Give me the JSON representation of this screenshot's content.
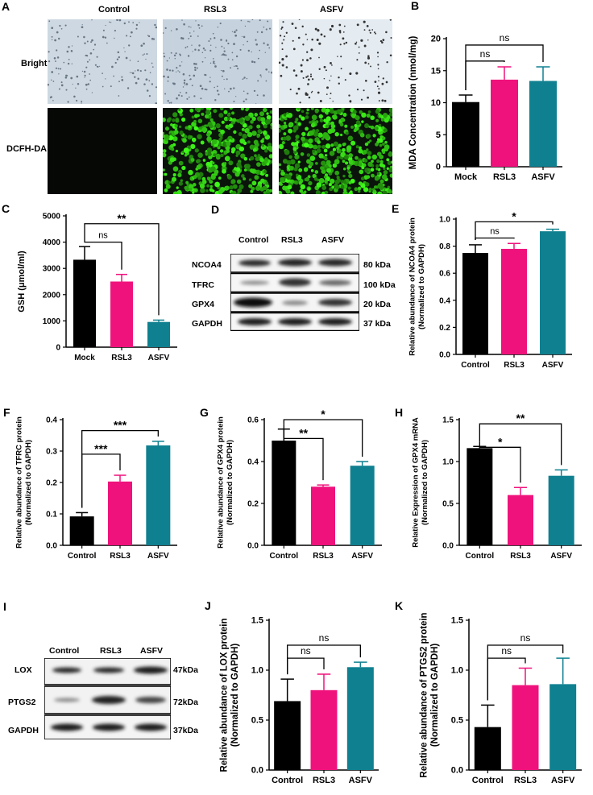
{
  "colors": {
    "black": "#000000",
    "pink": "#f0127c",
    "teal": "#0f8090"
  },
  "panelA": {
    "letter": "A",
    "columns": [
      "Control",
      "RSL3",
      "ASFV"
    ],
    "rows": [
      "Bright",
      "DCFH-DA"
    ]
  },
  "panelD": {
    "letter": "D",
    "columns": [
      "Control",
      "RSL3",
      "ASFV"
    ],
    "bands": [
      {
        "name": "NCOA4",
        "kda": "80 kDa"
      },
      {
        "name": "TFRC",
        "kda": "100 kDa"
      },
      {
        "name": "GPX4",
        "kda": "20 kDa"
      },
      {
        "name": "GAPDH",
        "kda": "37 kDa"
      }
    ]
  },
  "panelI": {
    "letter": "I",
    "columns": [
      "Control",
      "RSL3",
      "ASFV"
    ],
    "bands": [
      {
        "name": "LOX",
        "kda": "47kDa"
      },
      {
        "name": "PTGS2",
        "kda": "72kDa"
      },
      {
        "name": "GAPDH",
        "kda": "37kDa"
      }
    ]
  },
  "chart_data": [
    {
      "id": "B",
      "type": "bar",
      "categories": [
        "Mock",
        "RSL3",
        "ASFV"
      ],
      "values": [
        10.1,
        13.6,
        13.4
      ],
      "errors": [
        1.1,
        2.0,
        2.2
      ],
      "ylabel": "MDA Concentration (nmol/mg)",
      "ylim": [
        0,
        20
      ],
      "yticks": [
        "0",
        "5",
        "10",
        "15",
        "20"
      ],
      "brackets": [
        {
          "from": 0,
          "to": 1,
          "label": "ns",
          "y": 16.5
        },
        {
          "from": 0,
          "to": 2,
          "label": "ns",
          "y": 19.0
        }
      ]
    },
    {
      "id": "C",
      "type": "bar",
      "categories": [
        "Mock",
        "RSL3",
        "ASFV"
      ],
      "values": [
        3330,
        2500,
        960
      ],
      "errors": [
        500,
        270,
        70
      ],
      "ylabel": "GSH (μmol/ml)",
      "ylim": [
        0,
        5000
      ],
      "yticks": [
        "0",
        "1000",
        "2000",
        "3000",
        "4000",
        "5000"
      ],
      "brackets": [
        {
          "from": 0,
          "to": 1,
          "label": "ns",
          "y": 4000
        },
        {
          "from": 0,
          "to": 2,
          "label": "**",
          "y": 4700
        }
      ]
    },
    {
      "id": "E",
      "type": "bar",
      "categories": [
        "Control",
        "RSL3",
        "ASFV"
      ],
      "values": [
        0.75,
        0.78,
        0.91
      ],
      "errors": [
        0.06,
        0.04,
        0.015
      ],
      "ylabel": "Relative abundance of NCOA4 protein\n(Normalized to GAPDH)",
      "ylim": [
        0,
        1.0
      ],
      "yticks": [
        "0.0",
        "0.2",
        "0.4",
        "0.6",
        "0.8",
        "1.0"
      ],
      "brackets": [
        {
          "from": 0,
          "to": 1,
          "label": "ns",
          "y": 0.86
        },
        {
          "from": 0,
          "to": 2,
          "label": "*",
          "y": 0.98
        }
      ]
    },
    {
      "id": "F",
      "type": "bar",
      "categories": [
        "Control",
        "RSL3",
        "ASFV"
      ],
      "values": [
        0.092,
        0.203,
        0.318
      ],
      "errors": [
        0.012,
        0.02,
        0.013
      ],
      "ylabel": "Relative abundance of TFRC protein\n(Normalized to GAPDH)",
      "ylim": [
        0,
        0.4
      ],
      "yticks": [
        "0.0",
        "0.1",
        "0.2",
        "0.3",
        "0.4"
      ],
      "brackets": [
        {
          "from": 0,
          "to": 1,
          "label": "***",
          "y": 0.29
        },
        {
          "from": 0,
          "to": 2,
          "label": "***",
          "y": 0.365
        }
      ]
    },
    {
      "id": "G",
      "type": "bar",
      "categories": [
        "Control",
        "RSL3",
        "ASFV"
      ],
      "values": [
        0.5,
        0.28,
        0.38
      ],
      "errors": [
        0.055,
        0.008,
        0.02
      ],
      "ylabel": "Relative abundance of GPX4 protein\n(Normalized to GAPDH)",
      "ylim": [
        0,
        0.6
      ],
      "yticks": [
        "0.0",
        "0.2",
        "0.4",
        "0.6"
      ],
      "brackets": [
        {
          "from": 0,
          "to": 1,
          "label": "**",
          "y": 0.51
        },
        {
          "from": 0,
          "to": 2,
          "label": "*",
          "y": 0.6
        }
      ]
    },
    {
      "id": "H",
      "type": "bar",
      "categories": [
        "Control",
        "RSL3",
        "ASFV"
      ],
      "values": [
        1.16,
        0.6,
        0.83
      ],
      "errors": [
        0.02,
        0.09,
        0.07
      ],
      "ylabel": "Relative Expression of GPX4 mRNA\n(Normalized to GAPDH)",
      "ylim": [
        0,
        1.5
      ],
      "yticks": [
        "0.0",
        "0.5",
        "1.0",
        "1.5"
      ],
      "brackets": [
        {
          "from": 0,
          "to": 1,
          "label": "*",
          "y": 1.17
        },
        {
          "from": 0,
          "to": 2,
          "label": "**",
          "y": 1.45
        }
      ]
    },
    {
      "id": "J",
      "type": "bar",
      "categories": [
        "Control",
        "RSL3",
        "ASFV"
      ],
      "values": [
        0.69,
        0.8,
        1.03
      ],
      "errors": [
        0.22,
        0.16,
        0.05
      ],
      "ylabel": "Relative abundance of LOX protein\n(Normalized to GAPDH)",
      "ylim": [
        0,
        1.5
      ],
      "yticks": [
        "0.0",
        "0.5",
        "1.0",
        "1.5"
      ],
      "brackets": [
        {
          "from": 0,
          "to": 1,
          "label": "ns",
          "y": 1.12
        },
        {
          "from": 0,
          "to": 2,
          "label": "ns",
          "y": 1.25
        }
      ]
    },
    {
      "id": "K",
      "type": "bar",
      "categories": [
        "Control",
        "RSL3",
        "ASFV"
      ],
      "values": [
        0.43,
        0.85,
        0.86
      ],
      "errors": [
        0.22,
        0.17,
        0.26
      ],
      "ylabel": "Relative abundance of PTGS2 protein\n(Normalized to GAPDH)",
      "ylim": [
        0,
        1.5
      ],
      "yticks": [
        "0.0",
        "0.5",
        "1.0",
        "1.5"
      ],
      "brackets": [
        {
          "from": 0,
          "to": 1,
          "label": "ns",
          "y": 1.12
        },
        {
          "from": 0,
          "to": 2,
          "label": "ns",
          "y": 1.25
        }
      ]
    }
  ]
}
